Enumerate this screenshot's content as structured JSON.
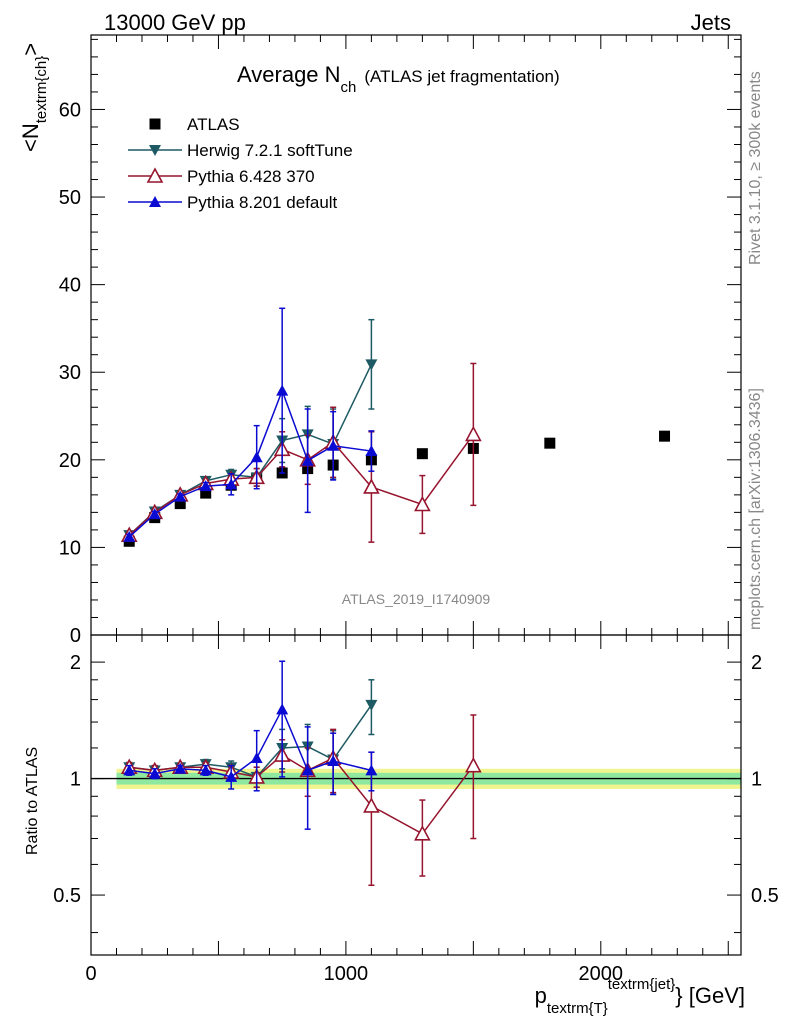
{
  "header": {
    "left": "13000 GeV pp",
    "right": "Jets"
  },
  "side_labels": {
    "rivet": "Rivet 3.1.10, ≥ 300k events",
    "mcplots": "mcplots.cern.ch [arXiv:1306.3436]"
  },
  "colors": {
    "atlas": "#000000",
    "herwig": "#1e5a64",
    "pythia6": "#96142d",
    "pythia8": "#0a0ad2",
    "band_inner": "#8ee8a0",
    "band_outer": "#f0f590"
  },
  "chart_data": [
    {
      "type": "scatter",
      "title_main": "Average N",
      "title_sub": "ch",
      "title_rest": "(ATLAS jet fragmentation)",
      "ylabel_main": "<N",
      "ylabel_sub": "textrm{ch}",
      "ylabel_end": ">",
      "analysis_id": "ATLAS_2019_I1740909",
      "xlim": [
        0,
        2550
      ],
      "ylim": [
        0,
        68.5
      ],
      "yticks": [
        0,
        10,
        20,
        30,
        40,
        50,
        60
      ],
      "legend_position": "top-left",
      "series": [
        {
          "name": "ATLAS",
          "marker": "square",
          "x": [
            150,
            250,
            350,
            450,
            550,
            650,
            750,
            850,
            950,
            1100,
            1300,
            1500,
            1800,
            2250
          ],
          "y": [
            10.7,
            13.4,
            15.0,
            16.2,
            17.1,
            17.9,
            18.5,
            19.0,
            19.4,
            20.0,
            20.7,
            21.3,
            21.9,
            22.7
          ]
        },
        {
          "name": "Herwig 7.2.1 softTune",
          "marker": "triangle-down",
          "x": [
            150,
            250,
            350,
            450,
            550,
            650,
            750,
            850,
            950,
            1100
          ],
          "y": [
            11.4,
            14.1,
            16.0,
            17.6,
            18.3,
            18.0,
            22.2,
            22.9,
            21.8,
            30.9
          ],
          "err": [
            0.3,
            0.3,
            0.3,
            0.4,
            0.6,
            1.0,
            2.5,
            3.2,
            4.0,
            5.1
          ]
        },
        {
          "name": "Pythia 6.428 370",
          "marker": "triangle-up-open",
          "x": [
            150,
            250,
            350,
            450,
            550,
            650,
            750,
            850,
            950,
            1100,
            1300,
            1500
          ],
          "y": [
            11.4,
            14.0,
            16.0,
            17.3,
            17.8,
            18.0,
            21.2,
            20.0,
            22.0,
            16.9,
            14.9,
            22.9
          ],
          "err": [
            0.3,
            0.3,
            0.3,
            0.4,
            0.6,
            1.0,
            2.0,
            2.8,
            4.0,
            6.3,
            3.3,
            8.1
          ]
        },
        {
          "name": "Pythia 8.201 default",
          "marker": "triangle-up",
          "x": [
            150,
            250,
            350,
            450,
            550,
            650,
            750,
            850,
            950,
            1100
          ],
          "y": [
            11.2,
            13.8,
            15.8,
            17.0,
            17.2,
            20.3,
            27.9,
            19.9,
            21.6,
            21.0
          ],
          "err": [
            0.3,
            0.3,
            0.3,
            0.4,
            1.2,
            3.6,
            9.4,
            5.9,
            3.9,
            2.3
          ]
        }
      ]
    },
    {
      "type": "scatter",
      "ylabel": "Ratio to ATLAS",
      "xlabel_main": "p",
      "xlabel_sub": "textrm{T}",
      "xlabel_sup": "textrm{jet}",
      "xlabel_unit": "} [GeV]",
      "xlim": [
        0,
        2550
      ],
      "xticks": [
        0,
        1000,
        2000
      ],
      "ylim": [
        0.35,
        2.35
      ],
      "yticks": [
        0.5,
        1,
        2
      ],
      "scale": "log",
      "reference_line": 1,
      "band_inner": [
        0.965,
        1.035
      ],
      "band_outer": [
        0.94,
        1.06
      ],
      "series": [
        {
          "name": "Herwig 7.2.1 softTune",
          "x": [
            150,
            250,
            350,
            450,
            550,
            650,
            750,
            850,
            950,
            1100
          ],
          "y": [
            1.07,
            1.05,
            1.07,
            1.09,
            1.07,
            1.01,
            1.2,
            1.21,
            1.12,
            1.55
          ],
          "err": [
            0.03,
            0.03,
            0.02,
            0.03,
            0.04,
            0.06,
            0.14,
            0.17,
            0.21,
            0.25
          ]
        },
        {
          "name": "Pythia 6.428 370",
          "x": [
            150,
            250,
            350,
            450,
            550,
            650,
            750,
            850,
            950,
            1100,
            1300,
            1500
          ],
          "y": [
            1.07,
            1.05,
            1.07,
            1.07,
            1.04,
            1.01,
            1.15,
            1.05,
            1.13,
            0.85,
            0.72,
            1.08
          ],
          "err": [
            0.03,
            0.03,
            0.02,
            0.03,
            0.04,
            0.06,
            0.11,
            0.15,
            0.21,
            0.32,
            0.16,
            0.38
          ]
        },
        {
          "name": "Pythia 8.201 default",
          "x": [
            150,
            250,
            350,
            450,
            550,
            650,
            750,
            850,
            950,
            1100
          ],
          "y": [
            1.05,
            1.03,
            1.06,
            1.05,
            1.01,
            1.13,
            1.51,
            1.05,
            1.11,
            1.05
          ],
          "err": [
            0.03,
            0.03,
            0.02,
            0.03,
            0.07,
            0.2,
            0.5,
            0.31,
            0.2,
            0.12
          ]
        }
      ]
    }
  ]
}
